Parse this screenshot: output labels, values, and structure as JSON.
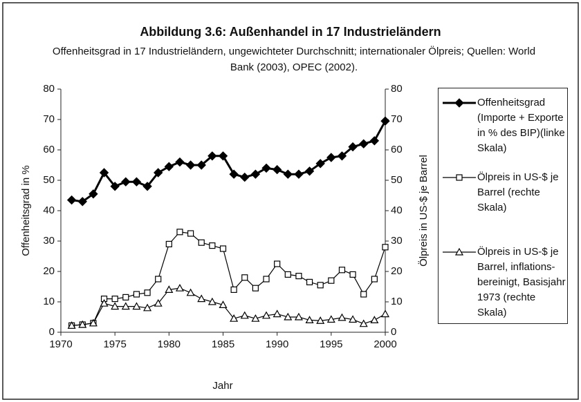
{
  "chart_data": {
    "type": "line",
    "title": "Abbildung 3.6: Außenhandel in 17 Industrieländern",
    "subtitle": "Offenheitsgrad in 17 Industrieländern, ungewichteter Durchschnitt; internationaler Ölpreis; Quellen: World Bank (2003), OPEC (2002).",
    "x_label": "Jahr",
    "y_label": "Offenheitsgrad in %",
    "y2_label": "Ölpreis in US-$ je Barrel",
    "x": [
      1971,
      1972,
      1973,
      1974,
      1975,
      1976,
      1977,
      1978,
      1979,
      1980,
      1981,
      1982,
      1983,
      1984,
      1985,
      1986,
      1987,
      1988,
      1989,
      1990,
      1991,
      1992,
      1993,
      1994,
      1995,
      1996,
      1997,
      1998,
      1999,
      2000
    ],
    "series": [
      {
        "name": "Offenheitsgrad (Importe + Exporte in % des BIP)(linke Skala)",
        "color": "#000000",
        "marker": "diamond",
        "axis": "y",
        "values": [
          43.5,
          43,
          45.5,
          52.5,
          48,
          49.5,
          49.5,
          48,
          52.5,
          54.5,
          56,
          55,
          55,
          58,
          58,
          52,
          51,
          52,
          54,
          53.5,
          52,
          52,
          53,
          55.5,
          57.5,
          58,
          61,
          62,
          63,
          69.5
        ]
      },
      {
        "name": "Ölpreis in US-$ je Barrel (rechte Skala)",
        "color": "#000000",
        "marker": "square",
        "axis": "y2",
        "values": [
          2.2,
          2.5,
          3,
          11,
          11,
          11.5,
          12.5,
          13,
          17.5,
          29,
          33,
          32.5,
          29.5,
          28.5,
          27.5,
          14,
          18,
          14.5,
          17.5,
          22.5,
          19,
          18.5,
          16.5,
          15.5,
          17,
          20.5,
          19,
          12.5,
          17.5,
          28
        ]
      },
      {
        "name": "Ölpreis in US-$ je Barrel, inflations-bereinigt, Basisjahr 1973 (rechte Skala)",
        "color": "#000000",
        "marker": "triangle",
        "axis": "y2",
        "values": [
          2.2,
          2.5,
          3,
          9.5,
          8.5,
          8.5,
          8.5,
          8,
          9.5,
          14,
          14.5,
          13,
          11,
          10,
          9,
          4.5,
          5.5,
          4.5,
          5.5,
          6,
          5,
          5,
          4,
          3.8,
          4.2,
          4.8,
          4.2,
          2.8,
          4,
          6
        ]
      }
    ],
    "xlim": [
      1970,
      2000
    ],
    "xticks": [
      1970,
      1975,
      1980,
      1985,
      1990,
      1995,
      2000
    ],
    "ylim": [
      0,
      80
    ],
    "yticks": [
      0,
      10,
      20,
      30,
      40,
      50,
      60,
      70,
      80
    ],
    "y2lim": [
      0,
      80
    ],
    "y2ticks": [
      0,
      10,
      20,
      30,
      40,
      50,
      60,
      70,
      80
    ],
    "legend": "right"
  }
}
